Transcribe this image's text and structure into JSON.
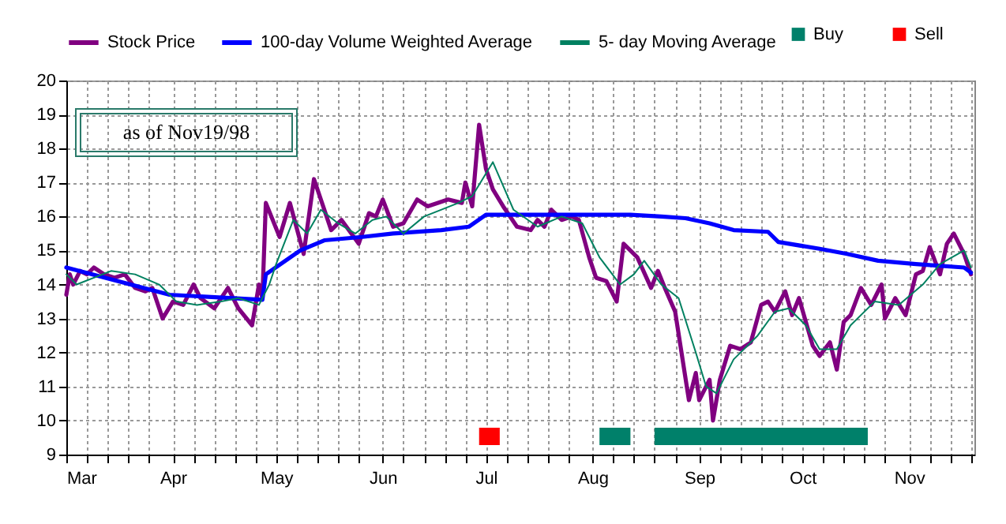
{
  "chart_data": {
    "type": "line",
    "annotations": [
      "as of Nov19/98"
    ],
    "legend": "top",
    "grid": true,
    "xlim": [
      "--03-01",
      "--11-20"
    ],
    "ylim": [
      9,
      20
    ],
    "yticks": [
      9,
      10,
      11,
      12,
      13,
      14,
      15,
      16,
      17,
      18,
      19,
      20
    ],
    "xticks": [
      {
        "value": "--03-01",
        "label": "Mar"
      },
      {
        "value": "--03-07",
        "label": null
      },
      {
        "value": "--03-13",
        "label": null
      },
      {
        "value": "--03-19",
        "label": null
      },
      {
        "value": "--03-25",
        "label": null
      },
      {
        "value": "--04-01",
        "label": "Apr"
      },
      {
        "value": "--04-07",
        "label": null
      },
      {
        "value": "--04-13",
        "label": null
      },
      {
        "value": "--04-19",
        "label": null
      },
      {
        "value": "--04-25",
        "label": null
      },
      {
        "value": "--05-01",
        "label": "May"
      },
      {
        "value": "--05-07",
        "label": null
      },
      {
        "value": "--05-13",
        "label": null
      },
      {
        "value": "--05-19",
        "label": null
      },
      {
        "value": "--05-25",
        "label": null
      },
      {
        "value": "--06-01",
        "label": "Jun"
      },
      {
        "value": "--06-07",
        "label": null
      },
      {
        "value": "--06-13",
        "label": null
      },
      {
        "value": "--06-19",
        "label": null
      },
      {
        "value": "--06-25",
        "label": null
      },
      {
        "value": "--07-01",
        "label": "Jul"
      },
      {
        "value": "--07-07",
        "label": null
      },
      {
        "value": "--07-13",
        "label": null
      },
      {
        "value": "--07-19",
        "label": null
      },
      {
        "value": "--07-25",
        "label": null
      },
      {
        "value": "--08-01",
        "label": "Aug"
      },
      {
        "value": "--08-07",
        "label": null
      },
      {
        "value": "--08-13",
        "label": null
      },
      {
        "value": "--08-19",
        "label": null
      },
      {
        "value": "--08-25",
        "label": null
      },
      {
        "value": "--09-01",
        "label": "Sep"
      },
      {
        "value": "--09-07",
        "label": null
      },
      {
        "value": "--09-13",
        "label": null
      },
      {
        "value": "--09-19",
        "label": null
      },
      {
        "value": "--09-25",
        "label": null
      },
      {
        "value": "--10-01",
        "label": "Oct"
      },
      {
        "value": "--10-07",
        "label": null
      },
      {
        "value": "--10-13",
        "label": null
      },
      {
        "value": "--10-19",
        "label": null
      },
      {
        "value": "--10-25",
        "label": null
      },
      {
        "value": "--11-01",
        "label": "Nov"
      },
      {
        "value": "--11-07",
        "label": null
      },
      {
        "value": "--11-13",
        "label": null
      },
      {
        "value": "--11-19",
        "label": null
      }
    ],
    "series": [
      {
        "name": "Stock Price",
        "color": "#800080",
        "x": [
          "--03-01",
          "--03-02",
          "--03-03",
          "--03-05",
          "--03-07",
          "--03-09",
          "--03-12",
          "--03-15",
          "--03-18",
          "--03-21",
          "--03-24",
          "--03-26",
          "--03-29",
          "--04-01",
          "--04-04",
          "--04-07",
          "--04-09",
          "--04-13",
          "--04-17",
          "--04-20",
          "--04-24",
          "--04-26",
          "--04-27",
          "--04-28",
          "--05-02",
          "--05-05",
          "--05-09",
          "--05-12",
          "--05-17",
          "--05-20",
          "--05-25",
          "--05-28",
          "--05-30",
          "--06-01",
          "--06-04",
          "--06-07",
          "--06-11",
          "--06-14",
          "--06-20",
          "--06-24",
          "--06-25",
          "--06-27",
          "--06-29",
          "--07-01",
          "--07-03",
          "--07-06",
          "--07-10",
          "--07-14",
          "--07-16",
          "--07-18",
          "--07-20",
          "--07-23",
          "--07-26",
          "--07-28",
          "--07-31",
          "--08-02",
          "--08-05",
          "--08-08",
          "--08-10",
          "--08-14",
          "--08-18",
          "--08-20",
          "--08-22",
          "--08-25",
          "--08-29",
          "--08-31",
          "--09-01",
          "--09-04",
          "--09-05",
          "--09-07",
          "--09-10",
          "--09-13",
          "--09-16",
          "--09-19",
          "--09-21",
          "--09-23",
          "--09-26",
          "--09-28",
          "--09-30",
          "--10-04",
          "--10-06",
          "--10-09",
          "--10-11",
          "--10-13",
          "--10-15",
          "--10-18",
          "--10-21",
          "--10-24",
          "--10-25",
          "--10-28",
          "--10-31",
          "--11-03",
          "--11-05",
          "--11-07",
          "--11-10",
          "--11-12",
          "--11-14",
          "--11-17",
          "--11-19"
        ],
        "values": [
          13.7,
          14.3,
          14.0,
          14.4,
          14.3,
          14.5,
          14.3,
          14.2,
          14.3,
          13.9,
          13.8,
          13.9,
          13.0,
          13.5,
          13.4,
          14.0,
          13.6,
          13.3,
          13.9,
          13.3,
          12.8,
          14.0,
          13.6,
          16.4,
          15.4,
          16.4,
          14.9,
          17.1,
          15.6,
          15.9,
          15.2,
          16.1,
          16.0,
          16.5,
          15.7,
          15.8,
          16.5,
          16.3,
          16.5,
          16.4,
          17.0,
          16.3,
          18.7,
          17.4,
          16.8,
          16.3,
          15.7,
          15.6,
          15.9,
          15.7,
          16.2,
          15.9,
          16.0,
          15.9,
          14.8,
          14.2,
          14.1,
          13.5,
          15.2,
          14.8,
          13.9,
          14.4,
          13.9,
          13.2,
          10.6,
          11.4,
          10.6,
          11.2,
          10.0,
          11.2,
          12.2,
          12.1,
          12.3,
          13.4,
          13.5,
          13.2,
          13.8,
          13.1,
          13.6,
          12.2,
          11.9,
          12.3,
          11.5,
          12.9,
          13.1,
          13.9,
          13.4,
          14.0,
          13.0,
          13.6,
          13.1,
          14.3,
          14.4,
          15.1,
          14.3,
          15.2,
          15.5,
          14.9,
          14.3
        ]
      },
      {
        "name": "100-day Volume Weighted Average",
        "color": "#0000ff",
        "x": [
          "--03-01",
          "--03-31",
          "--04-27",
          "--04-28",
          "--05-08",
          "--05-15",
          "--05-26",
          "--06-04",
          "--06-18",
          "--06-26",
          "--07-01",
          "--08-12",
          "--08-21",
          "--08-28",
          "--09-04",
          "--09-11",
          "--09-21",
          "--09-24",
          "--10-06",
          "--10-14",
          "--10-23",
          "--11-03",
          "--11-17",
          "--11-19"
        ],
        "values": [
          14.5,
          13.7,
          13.55,
          14.3,
          15.0,
          15.3,
          15.4,
          15.5,
          15.6,
          15.7,
          16.05,
          16.05,
          16.0,
          15.95,
          15.8,
          15.6,
          15.55,
          15.25,
          15.05,
          14.9,
          14.7,
          14.6,
          14.5,
          14.35
        ]
      },
      {
        "name": "5- day Moving Average",
        "color": "#008060",
        "x": [
          "--03-01",
          "--03-04",
          "--03-14",
          "--03-21",
          "--03-28",
          "--04-02",
          "--04-08",
          "--04-15",
          "--04-20",
          "--04-26",
          "--04-29",
          "--05-01",
          "--05-06",
          "--05-10",
          "--05-14",
          "--05-19",
          "--05-24",
          "--05-29",
          "--06-02",
          "--06-07",
          "--06-13",
          "--06-23",
          "--06-27",
          "--07-03",
          "--07-09",
          "--07-16",
          "--07-23",
          "--07-29",
          "--08-03",
          "--08-09",
          "--08-13",
          "--08-16",
          "--08-21",
          "--08-26",
          "--08-31",
          "--09-03",
          "--09-06",
          "--09-11",
          "--09-18",
          "--09-23",
          "--09-27",
          "--10-02",
          "--10-06",
          "--10-11",
          "--10-15",
          "--10-22",
          "--10-29",
          "--11-05",
          "--11-10",
          "--11-17",
          "--11-19"
        ],
        "values": [
          14.3,
          14.0,
          14.4,
          14.3,
          14.0,
          13.5,
          13.4,
          13.5,
          13.6,
          13.4,
          14.0,
          14.6,
          15.9,
          15.5,
          16.2,
          15.8,
          15.5,
          15.9,
          16.0,
          15.5,
          16.0,
          16.4,
          16.6,
          17.6,
          16.2,
          15.7,
          16.0,
          15.8,
          14.8,
          14.0,
          14.3,
          14.7,
          14.0,
          13.6,
          12.0,
          11.0,
          10.8,
          11.8,
          12.5,
          13.2,
          13.3,
          12.8,
          12.1,
          12.1,
          12.8,
          13.5,
          13.4,
          14.0,
          14.6,
          15.0,
          14.5
        ]
      }
    ],
    "bands": [
      {
        "axis": "x",
        "from": "--08-03",
        "to": "--08-12",
        "label": "Buy",
        "color": "#00806a"
      },
      {
        "axis": "x",
        "from": "--08-19",
        "to": "--10-20",
        "color": "#00806a"
      },
      {
        "axis": "x",
        "from": "--06-29",
        "to": "--07-05",
        "label": "Sell",
        "color": "#ff0000"
      }
    ]
  }
}
